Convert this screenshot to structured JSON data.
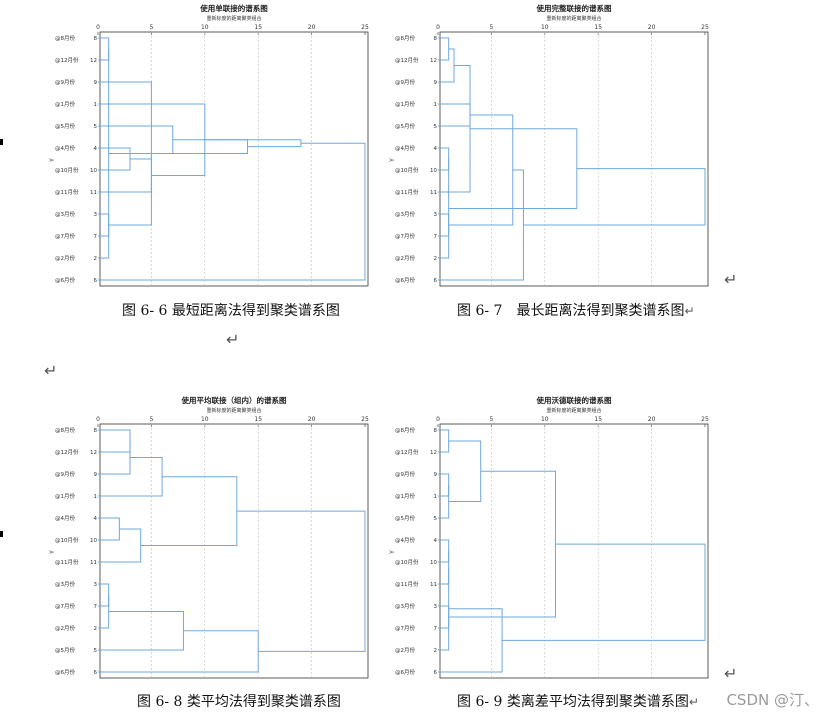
{
  "panels": [
    {
      "id": "single",
      "title": "使用单联接的谱系图",
      "subtitle": "重新标度的距离聚类组合",
      "ylabel": "Y",
      "ticks": [
        0,
        5,
        10,
        15,
        20,
        25
      ],
      "leaves": [
        {
          "case": "8",
          "label": "@8月份"
        },
        {
          "case": "12",
          "label": "@12月份"
        },
        {
          "case": "9",
          "label": "@9月份"
        },
        {
          "case": "1",
          "label": "@1月份"
        },
        {
          "case": "5",
          "label": "@5月份"
        },
        {
          "case": "4",
          "label": "@4月份"
        },
        {
          "case": "10",
          "label": "@10月份"
        },
        {
          "case": "11",
          "label": "@11月份"
        },
        {
          "case": "3",
          "label": "@3月份"
        },
        {
          "case": "7",
          "label": "@7月份"
        },
        {
          "case": "2",
          "label": "@2月份"
        },
        {
          "case": "6",
          "label": "@6月份"
        }
      ],
      "merges": [
        [
          0,
          1,
          1
        ],
        [
          8,
          9,
          1
        ],
        [
          12,
          10,
          1
        ],
        [
          5,
          6,
          3
        ],
        [
          13,
          2,
          5
        ],
        [
          15,
          7,
          5
        ],
        [
          16,
          4,
          7
        ],
        [
          17,
          3,
          10
        ],
        [
          18,
          14,
          14
        ],
        [
          20,
          19,
          19
        ],
        [
          21,
          11,
          25
        ]
      ],
      "caption": "图 6- 6 最短距离法得到聚类谱系图",
      "return_mark": "↵"
    },
    {
      "id": "complete",
      "title": "使用完整联接的谱系图",
      "subtitle": "重新标度的距离聚类组合",
      "ylabel": "Y",
      "ticks": [
        0,
        5,
        10,
        15,
        20,
        25
      ],
      "leaves": [
        {
          "case": "8",
          "label": "@8月份"
        },
        {
          "case": "12",
          "label": "@12月份"
        },
        {
          "case": "9",
          "label": "@9月份"
        },
        {
          "case": "1",
          "label": "@1月份"
        },
        {
          "case": "5",
          "label": "@5月份"
        },
        {
          "case": "4",
          "label": "@4月份"
        },
        {
          "case": "10",
          "label": "@10月份"
        },
        {
          "case": "11",
          "label": "@11月份"
        },
        {
          "case": "3",
          "label": "@3月份"
        },
        {
          "case": "7",
          "label": "@7月份"
        },
        {
          "case": "2",
          "label": "@2月份"
        },
        {
          "case": "6",
          "label": "@6月份"
        }
      ],
      "merges": [
        [
          0,
          1,
          1
        ],
        [
          8,
          9,
          1
        ],
        [
          5,
          6,
          1
        ],
        [
          12,
          2,
          1.5
        ],
        [
          3,
          4,
          3
        ],
        [
          15,
          7,
          3
        ],
        [
          14,
          10,
          1
        ],
        [
          13,
          16,
          7
        ],
        [
          19,
          11,
          8
        ],
        [
          18,
          17,
          13
        ],
        [
          21,
          20,
          25
        ]
      ],
      "caption": "图 6- 7　最长距离法得到聚类谱系图",
      "return_mark": "↵"
    },
    {
      "id": "average",
      "title": "使用平均联接（组内）的谱系图",
      "subtitle": "重新标度的距离聚类组合",
      "ylabel": "Y",
      "ticks": [
        0,
        5,
        10,
        15,
        20,
        25
      ],
      "leaves": [
        {
          "case": "8",
          "label": "@8月份"
        },
        {
          "case": "12",
          "label": "@12月份"
        },
        {
          "case": "9",
          "label": "@9月份"
        },
        {
          "case": "1",
          "label": "@1月份"
        },
        {
          "case": "4",
          "label": "@4月份"
        },
        {
          "case": "10",
          "label": "@10月份"
        },
        {
          "case": "11",
          "label": "@11月份"
        },
        {
          "case": "3",
          "label": "@3月份"
        },
        {
          "case": "7",
          "label": "@7月份"
        },
        {
          "case": "2",
          "label": "@2月份"
        },
        {
          "case": "5",
          "label": "@5月份"
        },
        {
          "case": "6",
          "label": "@6月份"
        }
      ],
      "merges": [
        [
          0,
          1,
          3
        ],
        [
          7,
          8,
          1
        ],
        [
          4,
          5,
          2
        ],
        [
          12,
          2,
          3
        ],
        [
          13,
          9,
          1
        ],
        [
          14,
          6,
          4
        ],
        [
          15,
          3,
          6
        ],
        [
          16,
          10,
          8
        ],
        [
          18,
          17,
          13
        ],
        [
          19,
          11,
          15
        ],
        [
          21,
          20,
          25
        ]
      ],
      "caption": "图 6- 8 类平均法得到聚类谱系图",
      "return_mark": ""
    },
    {
      "id": "ward",
      "title": "使用沃德联接的谱系图",
      "subtitle": "重新标度的距离聚类组合",
      "ylabel": "Y",
      "ticks": [
        0,
        5,
        10,
        15,
        20,
        25
      ],
      "leaves": [
        {
          "case": "8",
          "label": "@8月份"
        },
        {
          "case": "12",
          "label": "@12月份"
        },
        {
          "case": "9",
          "label": "@9月份"
        },
        {
          "case": "1",
          "label": "@1月份"
        },
        {
          "case": "5",
          "label": "@5月份"
        },
        {
          "case": "4",
          "label": "@4月份"
        },
        {
          "case": "10",
          "label": "@10月份"
        },
        {
          "case": "11",
          "label": "@11月份"
        },
        {
          "case": "3",
          "label": "@3月份"
        },
        {
          "case": "7",
          "label": "@7月份"
        },
        {
          "case": "2",
          "label": "@2月份"
        },
        {
          "case": "6",
          "label": "@6月份"
        }
      ],
      "merges": [
        [
          0,
          1,
          1
        ],
        [
          2,
          3,
          1
        ],
        [
          4,
          13,
          1
        ],
        [
          8,
          9,
          1
        ],
        [
          5,
          6,
          1
        ],
        [
          16,
          7,
          1
        ],
        [
          17,
          10,
          1
        ],
        [
          12,
          14,
          4
        ],
        [
          18,
          11,
          6
        ],
        [
          19,
          15,
          11
        ],
        [
          21,
          20,
          25
        ]
      ],
      "caption": "图 6- 9 类离差平均法得到聚类谱系图",
      "return_mark": "↵"
    }
  ],
  "stray_marks": [
    "↵",
    "↵",
    "↵"
  ],
  "watermark": "CSDN @汀、",
  "colors": {
    "link": "#6fa8dc",
    "axis": "#333333",
    "grid": "#b0b0b0"
  }
}
